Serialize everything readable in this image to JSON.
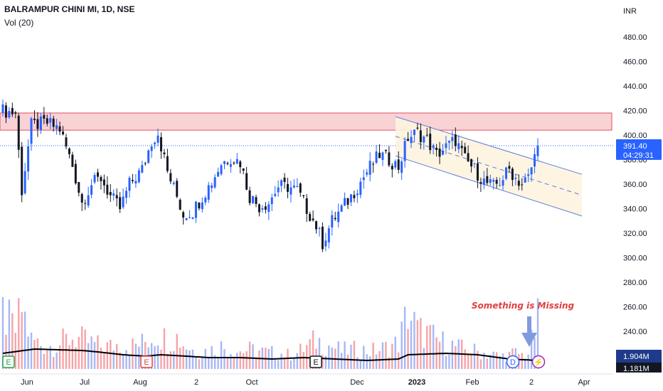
{
  "header": {
    "title": "BALRAMPUR CHINI MI, 1D, NSE",
    "vol_label": "Vol (20)"
  },
  "colors": {
    "up": "#2962ff",
    "down": "#131722",
    "vol_up": "#a7b7f5",
    "vol_down": "#f5a4a8",
    "zone_fill": "#f7c3c8",
    "zone_stroke": "#e0505e",
    "channel_fill": "#fdf3df",
    "channel_line": "#5b7fd9",
    "annotation": "#e04040",
    "arrow": "#7f9be0",
    "price_tag": "#2962ff",
    "vol_tag": "#1e3a8a",
    "ma": "#000000"
  },
  "chart_data": {
    "type": "candlestick",
    "currency": "INR",
    "y_ticks": [
      "480.00",
      "460.00",
      "440.00",
      "420.00",
      "400.00",
      "380.00",
      "360.00",
      "340.00",
      "320.00",
      "300.00",
      "280.00",
      "260.00",
      "240.00"
    ],
    "ylim": [
      240,
      480
    ],
    "x_ticks": [
      "Jun",
      "Jul",
      "Aug",
      "2",
      "Oct",
      "Dec",
      "2023",
      "Feb",
      "2",
      "Apr"
    ],
    "last_price": "391.40",
    "countdown": "04:29:31",
    "volume_labels": [
      "1.904M",
      "1.181M"
    ],
    "resistance_zone": [
      404,
      418
    ],
    "channel": {
      "upper": [
        [
          0,
          415
        ],
        [
          1,
          368
        ]
      ],
      "lower": [
        [
          0,
          383
        ],
        [
          1,
          334
        ]
      ]
    },
    "annotation": "Something is Missing",
    "event_markers": [
      {
        "label": "E",
        "kind": "earnings"
      },
      {
        "label": "E",
        "kind": "earnings"
      },
      {
        "label": "E",
        "kind": "earnings"
      },
      {
        "label": "D",
        "kind": "dividend"
      },
      {
        "label": "⚡",
        "kind": "split"
      }
    ],
    "price_path": [
      [
        0,
        420
      ],
      [
        4,
        418
      ],
      [
        6,
        355
      ],
      [
        9,
        408
      ],
      [
        14,
        410
      ],
      [
        18,
        405
      ],
      [
        22,
        375
      ],
      [
        25,
        345
      ],
      [
        28,
        360
      ],
      [
        31,
        365
      ],
      [
        34,
        350
      ],
      [
        37,
        340
      ],
      [
        40,
        360
      ],
      [
        44,
        372
      ],
      [
        47,
        395
      ],
      [
        49,
        402
      ],
      [
        52,
        370
      ],
      [
        55,
        350
      ],
      [
        57,
        335
      ],
      [
        60,
        338
      ],
      [
        63,
        350
      ],
      [
        66,
        362
      ],
      [
        69,
        377
      ],
      [
        72,
        382
      ],
      [
        75,
        378
      ],
      [
        78,
        350
      ],
      [
        81,
        342
      ],
      [
        84,
        345
      ],
      [
        87,
        358
      ],
      [
        90,
        358
      ],
      [
        93,
        355
      ],
      [
        96,
        340
      ],
      [
        99,
        326
      ],
      [
        101,
        312
      ],
      [
        104,
        330
      ],
      [
        107,
        340
      ],
      [
        110,
        350
      ],
      [
        113,
        362
      ],
      [
        116,
        374
      ],
      [
        119,
        384
      ],
      [
        122,
        380
      ],
      [
        125,
        374
      ],
      [
        128,
        398
      ],
      [
        131,
        402
      ],
      [
        134,
        396
      ],
      [
        137,
        384
      ],
      [
        140,
        390
      ],
      [
        143,
        396
      ],
      [
        146,
        380
      ],
      [
        149,
        372
      ],
      [
        152,
        362
      ],
      [
        155,
        358
      ],
      [
        157,
        362
      ],
      [
        160,
        372
      ],
      [
        162,
        365
      ],
      [
        164,
        360
      ],
      [
        166,
        365
      ],
      [
        169,
        391
      ]
    ],
    "volume_path": [
      [
        0,
        85
      ],
      [
        4,
        60
      ],
      [
        6,
        95
      ],
      [
        9,
        45
      ],
      [
        14,
        35
      ],
      [
        18,
        40
      ],
      [
        22,
        50
      ],
      [
        25,
        45
      ],
      [
        28,
        40
      ],
      [
        31,
        35
      ],
      [
        34,
        35
      ],
      [
        37,
        40
      ],
      [
        40,
        35
      ],
      [
        44,
        40
      ],
      [
        47,
        50
      ],
      [
        49,
        55
      ],
      [
        52,
        45
      ],
      [
        55,
        50
      ],
      [
        57,
        40
      ],
      [
        60,
        30
      ],
      [
        63,
        28
      ],
      [
        66,
        30
      ],
      [
        69,
        35
      ],
      [
        72,
        30
      ],
      [
        75,
        28
      ],
      [
        78,
        30
      ],
      [
        81,
        28
      ],
      [
        84,
        25
      ],
      [
        87,
        25
      ],
      [
        90,
        22
      ],
      [
        93,
        25
      ],
      [
        96,
        35
      ],
      [
        99,
        45
      ],
      [
        101,
        40
      ],
      [
        104,
        35
      ],
      [
        107,
        28
      ],
      [
        110,
        30
      ],
      [
        113,
        30
      ],
      [
        116,
        28
      ],
      [
        119,
        30
      ],
      [
        122,
        35
      ],
      [
        125,
        40
      ],
      [
        128,
        90
      ],
      [
        131,
        60
      ],
      [
        134,
        55
      ],
      [
        137,
        45
      ],
      [
        140,
        40
      ],
      [
        143,
        35
      ],
      [
        146,
        30
      ],
      [
        149,
        28
      ],
      [
        152,
        25
      ],
      [
        155,
        22
      ],
      [
        157,
        20
      ],
      [
        160,
        22
      ],
      [
        162,
        25
      ],
      [
        164,
        22
      ],
      [
        166,
        25
      ],
      [
        169,
        75
      ]
    ],
    "ma_path": [
      [
        0,
        22
      ],
      [
        10,
        28
      ],
      [
        25,
        26
      ],
      [
        30,
        24
      ],
      [
        38,
        20
      ],
      [
        45,
        18
      ],
      [
        50,
        20
      ],
      [
        58,
        18
      ],
      [
        65,
        16
      ],
      [
        75,
        16
      ],
      [
        85,
        14
      ],
      [
        95,
        16
      ],
      [
        105,
        14
      ],
      [
        115,
        12
      ],
      [
        125,
        14
      ],
      [
        128,
        20
      ],
      [
        140,
        22
      ],
      [
        150,
        20
      ],
      [
        160,
        14
      ],
      [
        169,
        12
      ]
    ],
    "bar_count": 170
  }
}
